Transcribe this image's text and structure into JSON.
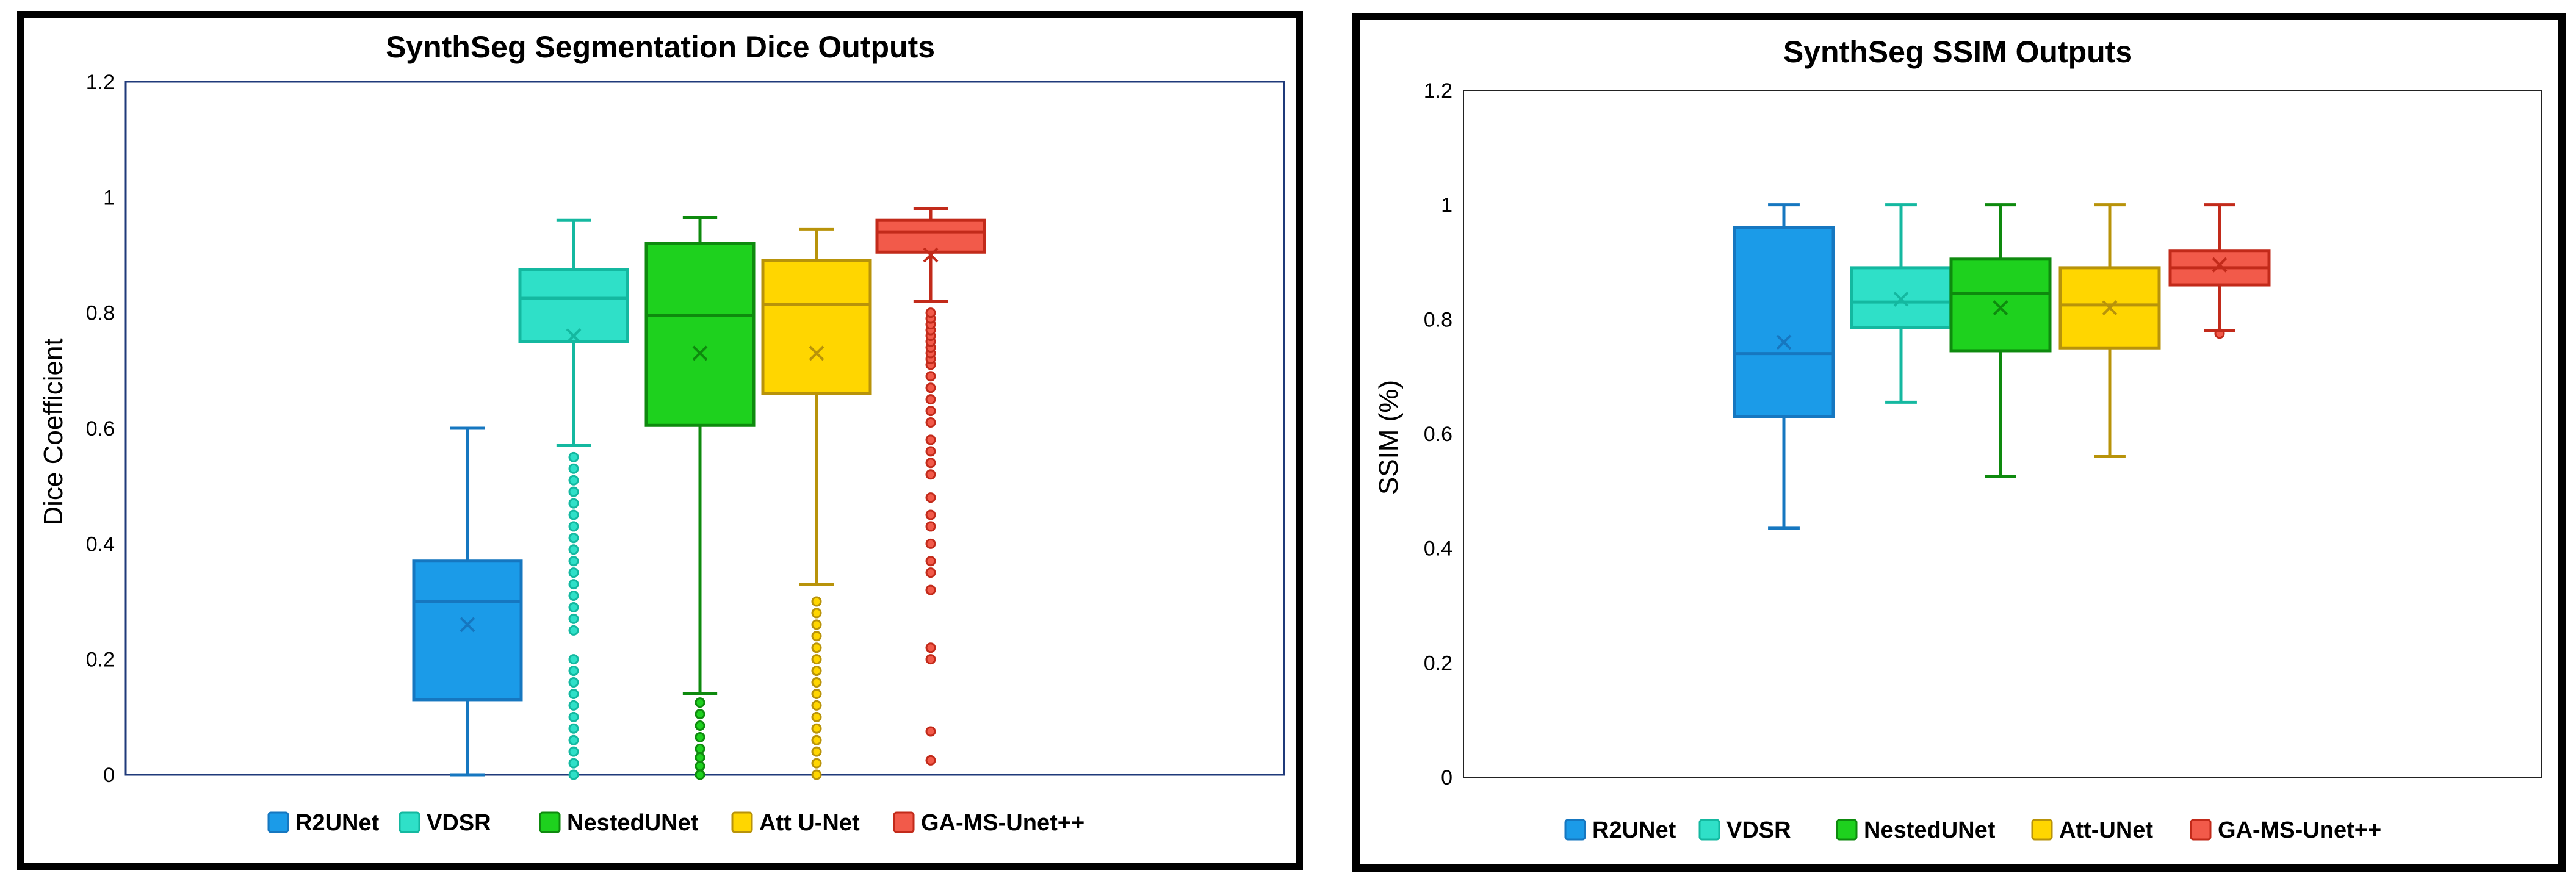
{
  "chart_data": [
    {
      "type": "box",
      "title": "SynthSeg Segmentation Dice Outputs",
      "xlabel": "",
      "ylabel": "Dice Coefficient",
      "ylim": [
        0,
        1.2
      ],
      "yticks": [
        "0",
        "0.2",
        "0.4",
        "0.6",
        "0.8",
        "1",
        "1.2"
      ],
      "legend_position": "bottom",
      "series": [
        {
          "name": "R2UNet",
          "color": "#1b9be8",
          "stroke": "#1677c0",
          "min": 0.0,
          "q1": 0.13,
          "median": 0.3,
          "q3": 0.37,
          "max": 0.6,
          "mean": 0.26,
          "outliers": []
        },
        {
          "name": "VDSR",
          "color": "#2fe0c8",
          "stroke": "#14b8a0",
          "min": 0.57,
          "q1": 0.75,
          "median": 0.825,
          "q3": 0.875,
          "max": 0.96,
          "mean": 0.76,
          "outliers": [
            0.0,
            0.02,
            0.04,
            0.06,
            0.08,
            0.1,
            0.12,
            0.14,
            0.16,
            0.18,
            0.2,
            0.25,
            0.27,
            0.29,
            0.31,
            0.33,
            0.35,
            0.37,
            0.39,
            0.41,
            0.43,
            0.45,
            0.47,
            0.49,
            0.51,
            0.53,
            0.55
          ]
        },
        {
          "name": "NestedUNet",
          "color": "#1ed11e",
          "stroke": "#0e8a0e",
          "min": 0.14,
          "q1": 0.605,
          "median": 0.795,
          "q3": 0.92,
          "max": 0.965,
          "mean": 0.73,
          "outliers": [
            0.0,
            0.015,
            0.03,
            0.045,
            0.065,
            0.085,
            0.105,
            0.125
          ]
        },
        {
          "name": "Att U-Net",
          "color": "#ffd600",
          "stroke": "#b8930a",
          "min": 0.33,
          "q1": 0.66,
          "median": 0.815,
          "q3": 0.89,
          "max": 0.945,
          "mean": 0.73,
          "outliers": [
            0.0,
            0.02,
            0.04,
            0.06,
            0.08,
            0.1,
            0.12,
            0.14,
            0.16,
            0.18,
            0.2,
            0.22,
            0.24,
            0.26,
            0.28,
            0.3
          ]
        },
        {
          "name": "GA-MS-Unet++",
          "color": "#f25a4a",
          "stroke": "#c22a1a",
          "min": 0.82,
          "q1": 0.905,
          "median": 0.94,
          "q3": 0.96,
          "max": 0.98,
          "mean": 0.9,
          "outliers": [
            0.025,
            0.075,
            0.2,
            0.22,
            0.32,
            0.35,
            0.37,
            0.4,
            0.43,
            0.45,
            0.48,
            0.52,
            0.54,
            0.56,
            0.58,
            0.61,
            0.63,
            0.65,
            0.67,
            0.69,
            0.71,
            0.72,
            0.73,
            0.74,
            0.75,
            0.76,
            0.77,
            0.78,
            0.79,
            0.8
          ]
        }
      ]
    },
    {
      "type": "box",
      "title": "SynthSeg SSIM Outputs",
      "xlabel": "",
      "ylabel": "SSIM (%)",
      "ylim": [
        0,
        1.2
      ],
      "yticks": [
        "0",
        "0.2",
        "0.4",
        "0.6",
        "0.8",
        "1",
        "1.2"
      ],
      "legend_position": "bottom",
      "series": [
        {
          "name": "R2UNet",
          "color": "#1b9be8",
          "stroke": "#1677c0",
          "min": 0.435,
          "q1": 0.63,
          "median": 0.74,
          "q3": 0.96,
          "max": 1.0,
          "mean": 0.76,
          "outliers": []
        },
        {
          "name": "VDSR",
          "color": "#2fe0c8",
          "stroke": "#14b8a0",
          "min": 0.655,
          "q1": 0.785,
          "median": 0.83,
          "q3": 0.89,
          "max": 1.0,
          "mean": 0.835,
          "outliers": []
        },
        {
          "name": "NestedUNet",
          "color": "#1ed11e",
          "stroke": "#0e8a0e",
          "min": 0.525,
          "q1": 0.745,
          "median": 0.845,
          "q3": 0.905,
          "max": 1.0,
          "mean": 0.82,
          "outliers": []
        },
        {
          "name": "Att-UNet",
          "color": "#ffd600",
          "stroke": "#b8930a",
          "min": 0.56,
          "q1": 0.75,
          "median": 0.825,
          "q3": 0.89,
          "max": 1.0,
          "mean": 0.82,
          "outliers": []
        },
        {
          "name": "GA-MS-Unet++",
          "color": "#f25a4a",
          "stroke": "#c22a1a",
          "min": 0.78,
          "q1": 0.86,
          "median": 0.89,
          "q3": 0.92,
          "max": 1.0,
          "mean": 0.895,
          "outliers": [
            0.775
          ]
        }
      ]
    }
  ]
}
